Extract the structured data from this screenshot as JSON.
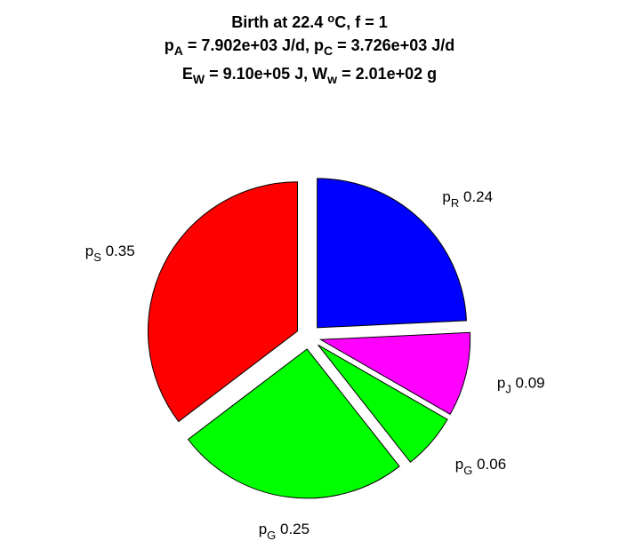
{
  "chart_data": {
    "type": "pie",
    "title": {
      "line1": "Birth at 22.4 °C, f = 1",
      "line2": "pA = 7.902e+03 J/d, pC = 3.726e+03 J/d",
      "line3": "EW = 9.10e+05 J, Ww = 2.01e+02 g"
    },
    "title_parts": {
      "line1_a": "Birth at 22.4 ",
      "line1_sup": "o",
      "line1_b": "C, f = 1",
      "line2_a": "p",
      "line2_sub1": "A",
      "line2_b": " = 7.902e+03 J/d, p",
      "line2_sub2": "C",
      "line2_c": " = 3.726e+03 J/d",
      "line3_a": "E",
      "line3_sub1": "W",
      "line3_b": " = 9.10e+05 J, W",
      "line3_sub2": "w",
      "line3_c": " = 2.01e+02 g"
    },
    "slices": [
      {
        "label": "p",
        "sub": "R",
        "value_text": "0.24",
        "value": 0.24,
        "color": "#0000ff"
      },
      {
        "label": "p",
        "sub": "J",
        "value_text": "0.09",
        "value": 0.09,
        "color": "#ff00ff"
      },
      {
        "label": "p",
        "sub": "G",
        "value_text": "0.06",
        "value": 0.06,
        "color": "#00ff00"
      },
      {
        "label": "p",
        "sub": "G",
        "value_text": "0.25",
        "value": 0.25,
        "color": "#00ff00"
      },
      {
        "label": "p",
        "sub": "S",
        "value_text": "0.35",
        "value": 0.35,
        "color": "#ff0000"
      }
    ],
    "start_angle": "top",
    "direction": "clockwise",
    "exploded": true
  }
}
